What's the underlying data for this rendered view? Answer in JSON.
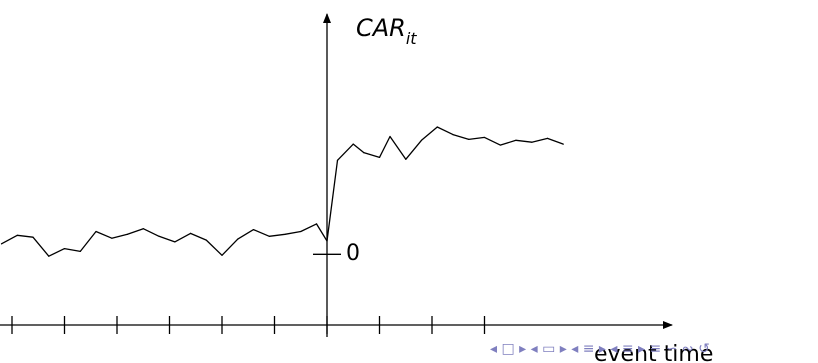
{
  "chart_data": {
    "type": "line",
    "title": "",
    "xlabel": "event time",
    "ylabel_main": "CAR",
    "ylabel_sub": "it",
    "zero_label": "0",
    "x": [
      -31,
      -29.5,
      -28,
      -26.5,
      -25,
      -23.5,
      -22,
      -20.5,
      -19,
      -17.5,
      -16,
      -14.5,
      -13,
      -11.5,
      -10,
      -8.5,
      -7,
      -5.5,
      -4,
      -2.5,
      -1,
      0,
      1,
      2.5,
      3.5,
      5,
      6,
      7.5,
      9,
      10.5,
      12,
      13.5,
      15,
      16.5,
      18,
      19.5,
      21,
      22.5
    ],
    "y": [
      -0.3,
      0.6,
      0.4,
      -1.6,
      -0.8,
      -1.1,
      1.0,
      0.3,
      0.7,
      1.3,
      0.5,
      -0.1,
      0.8,
      0.1,
      -1.5,
      0.2,
      1.2,
      0.5,
      0.7,
      1.0,
      1.8,
      0,
      8.5,
      10.2,
      9.3,
      8.8,
      11.0,
      8.6,
      10.6,
      12.0,
      11.2,
      10.7,
      10.9,
      10.1,
      10.6,
      10.4,
      10.8,
      10.2
    ],
    "xlim": [
      -32,
      32
    ],
    "ylim": [
      -6,
      23
    ],
    "x_ticks": [
      -30,
      -25,
      -20,
      -15,
      -10,
      -5,
      0,
      5,
      10,
      15
    ],
    "grid": false,
    "legend": "none"
  },
  "nav": {
    "glyphs": "◂ □ ▸ ◂ ▭ ▸ ◂ ≡ ▸ ◂ ≡ ▸ ≡ ∽ ∾ ↺"
  }
}
